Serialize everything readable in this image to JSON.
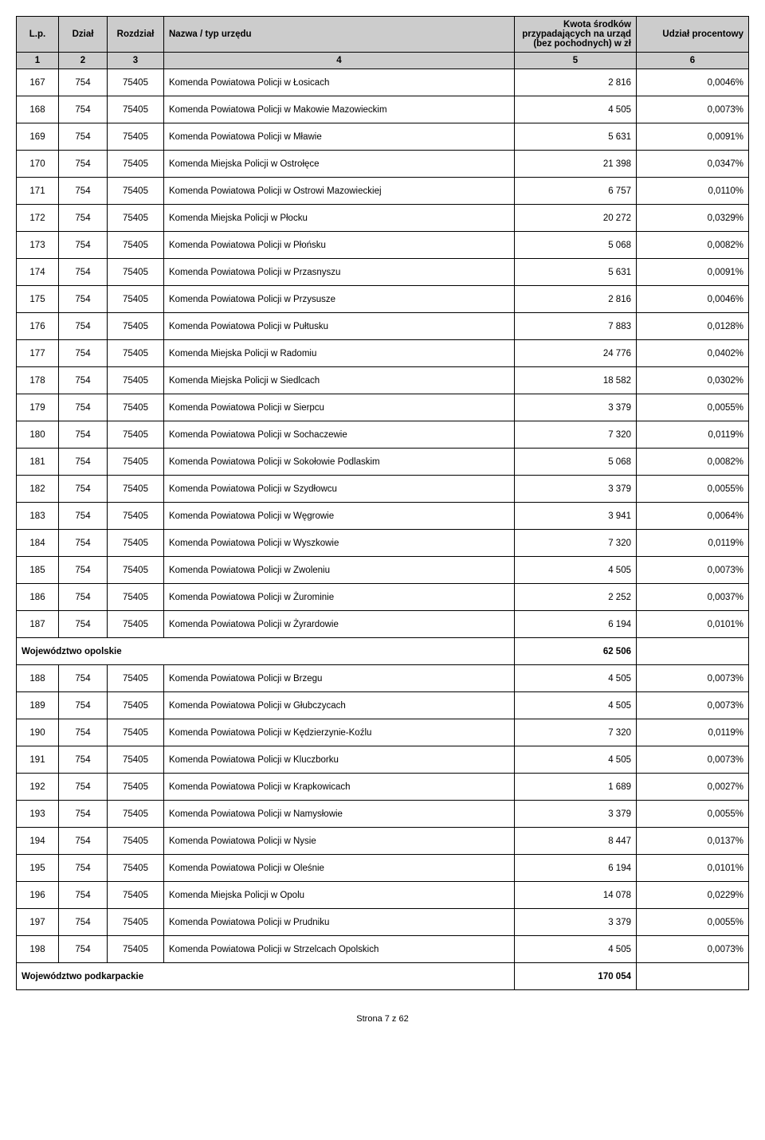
{
  "columns": {
    "lp": "L.p.",
    "dzial": "Dział",
    "rozdzial": "Rozdział",
    "nazwa": "Nazwa / typ urzędu",
    "kwota": "Kwota środków przypadających na urząd (bez pochodnych) w zł",
    "udzial": "Udział procentowy"
  },
  "header_nums": {
    "c1": "1",
    "c2": "2",
    "c3": "3",
    "c4": "4",
    "c5": "5",
    "c6": "6"
  },
  "rows": [
    {
      "lp": "167",
      "dzial": "754",
      "rozdzial": "75405",
      "nazwa": "Komenda Powiatowa Policji w Łosicach",
      "kwota": "2 816",
      "udzial": "0,0046%"
    },
    {
      "lp": "168",
      "dzial": "754",
      "rozdzial": "75405",
      "nazwa": "Komenda Powiatowa Policji w Makowie Mazowieckim",
      "kwota": "4 505",
      "udzial": "0,0073%"
    },
    {
      "lp": "169",
      "dzial": "754",
      "rozdzial": "75405",
      "nazwa": "Komenda Powiatowa Policji w Mławie",
      "kwota": "5 631",
      "udzial": "0,0091%"
    },
    {
      "lp": "170",
      "dzial": "754",
      "rozdzial": "75405",
      "nazwa": "Komenda Miejska Policji w Ostrołęce",
      "kwota": "21 398",
      "udzial": "0,0347%"
    },
    {
      "lp": "171",
      "dzial": "754",
      "rozdzial": "75405",
      "nazwa": "Komenda Powiatowa Policji w Ostrowi Mazowieckiej",
      "kwota": "6 757",
      "udzial": "0,0110%"
    },
    {
      "lp": "172",
      "dzial": "754",
      "rozdzial": "75405",
      "nazwa": "Komenda Miejska Policji w Płocku",
      "kwota": "20 272",
      "udzial": "0,0329%"
    },
    {
      "lp": "173",
      "dzial": "754",
      "rozdzial": "75405",
      "nazwa": "Komenda Powiatowa Policji w Płońsku",
      "kwota": "5 068",
      "udzial": "0,0082%"
    },
    {
      "lp": "174",
      "dzial": "754",
      "rozdzial": "75405",
      "nazwa": "Komenda Powiatowa Policji w Przasnyszu",
      "kwota": "5 631",
      "udzial": "0,0091%"
    },
    {
      "lp": "175",
      "dzial": "754",
      "rozdzial": "75405",
      "nazwa": "Komenda Powiatowa Policji w Przysusze",
      "kwota": "2 816",
      "udzial": "0,0046%"
    },
    {
      "lp": "176",
      "dzial": "754",
      "rozdzial": "75405",
      "nazwa": "Komenda Powiatowa Policji w Pułtusku",
      "kwota": "7 883",
      "udzial": "0,0128%"
    },
    {
      "lp": "177",
      "dzial": "754",
      "rozdzial": "75405",
      "nazwa": "Komenda Miejska Policji w Radomiu",
      "kwota": "24 776",
      "udzial": "0,0402%"
    },
    {
      "lp": "178",
      "dzial": "754",
      "rozdzial": "75405",
      "nazwa": "Komenda Miejska Policji w Siedlcach",
      "kwota": "18 582",
      "udzial": "0,0302%"
    },
    {
      "lp": "179",
      "dzial": "754",
      "rozdzial": "75405",
      "nazwa": "Komenda Powiatowa Policji w Sierpcu",
      "kwota": "3 379",
      "udzial": "0,0055%"
    },
    {
      "lp": "180",
      "dzial": "754",
      "rozdzial": "75405",
      "nazwa": "Komenda Powiatowa Policji w Sochaczewie",
      "kwota": "7 320",
      "udzial": "0,0119%"
    },
    {
      "lp": "181",
      "dzial": "754",
      "rozdzial": "75405",
      "nazwa": "Komenda Powiatowa Policji w Sokołowie Podlaskim",
      "kwota": "5 068",
      "udzial": "0,0082%"
    },
    {
      "lp": "182",
      "dzial": "754",
      "rozdzial": "75405",
      "nazwa": "Komenda Powiatowa Policji w Szydłowcu",
      "kwota": "3 379",
      "udzial": "0,0055%"
    },
    {
      "lp": "183",
      "dzial": "754",
      "rozdzial": "75405",
      "nazwa": "Komenda Powiatowa Policji w Węgrowie",
      "kwota": "3 941",
      "udzial": "0,0064%"
    },
    {
      "lp": "184",
      "dzial": "754",
      "rozdzial": "75405",
      "nazwa": "Komenda Powiatowa Policji w Wyszkowie",
      "kwota": "7 320",
      "udzial": "0,0119%"
    },
    {
      "lp": "185",
      "dzial": "754",
      "rozdzial": "75405",
      "nazwa": "Komenda Powiatowa Policji w Zwoleniu",
      "kwota": "4 505",
      "udzial": "0,0073%"
    },
    {
      "lp": "186",
      "dzial": "754",
      "rozdzial": "75405",
      "nazwa": "Komenda Powiatowa Policji w Żurominie",
      "kwota": "2 252",
      "udzial": "0,0037%"
    },
    {
      "lp": "187",
      "dzial": "754",
      "rozdzial": "75405",
      "nazwa": "Komenda Powiatowa Policji w Żyrardowie",
      "kwota": "6 194",
      "udzial": "0,0101%"
    }
  ],
  "region1": {
    "label": "Województwo opolskie",
    "value": "62 506"
  },
  "rows2": [
    {
      "lp": "188",
      "dzial": "754",
      "rozdzial": "75405",
      "nazwa": "Komenda Powiatowa Policji w Brzegu",
      "kwota": "4 505",
      "udzial": "0,0073%"
    },
    {
      "lp": "189",
      "dzial": "754",
      "rozdzial": "75405",
      "nazwa": "Komenda Powiatowa Policji w Głubczycach",
      "kwota": "4 505",
      "udzial": "0,0073%"
    },
    {
      "lp": "190",
      "dzial": "754",
      "rozdzial": "75405",
      "nazwa": "Komenda Powiatowa Policji w Kędzierzynie-Koźlu",
      "kwota": "7 320",
      "udzial": "0,0119%"
    },
    {
      "lp": "191",
      "dzial": "754",
      "rozdzial": "75405",
      "nazwa": "Komenda Powiatowa Policji w Kluczborku",
      "kwota": "4 505",
      "udzial": "0,0073%"
    },
    {
      "lp": "192",
      "dzial": "754",
      "rozdzial": "75405",
      "nazwa": "Komenda Powiatowa Policji w Krapkowicach",
      "kwota": "1 689",
      "udzial": "0,0027%"
    },
    {
      "lp": "193",
      "dzial": "754",
      "rozdzial": "75405",
      "nazwa": "Komenda Powiatowa Policji w Namysłowie",
      "kwota": "3 379",
      "udzial": "0,0055%"
    },
    {
      "lp": "194",
      "dzial": "754",
      "rozdzial": "75405",
      "nazwa": "Komenda Powiatowa Policji w Nysie",
      "kwota": "8 447",
      "udzial": "0,0137%"
    },
    {
      "lp": "195",
      "dzial": "754",
      "rozdzial": "75405",
      "nazwa": "Komenda Powiatowa Policji w Oleśnie",
      "kwota": "6 194",
      "udzial": "0,0101%"
    },
    {
      "lp": "196",
      "dzial": "754",
      "rozdzial": "75405",
      "nazwa": "Komenda Miejska Policji w Opolu",
      "kwota": "14 078",
      "udzial": "0,0229%"
    },
    {
      "lp": "197",
      "dzial": "754",
      "rozdzial": "75405",
      "nazwa": "Komenda Powiatowa Policji w Prudniku",
      "kwota": "3 379",
      "udzial": "0,0055%"
    },
    {
      "lp": "198",
      "dzial": "754",
      "rozdzial": "75405",
      "nazwa": "Komenda Powiatowa Policji w Strzelcach Opolskich",
      "kwota": "4 505",
      "udzial": "0,0073%"
    }
  ],
  "region2": {
    "label": "Województwo podkarpackie",
    "value": "170 054"
  },
  "footer": "Strona 7 z 62"
}
